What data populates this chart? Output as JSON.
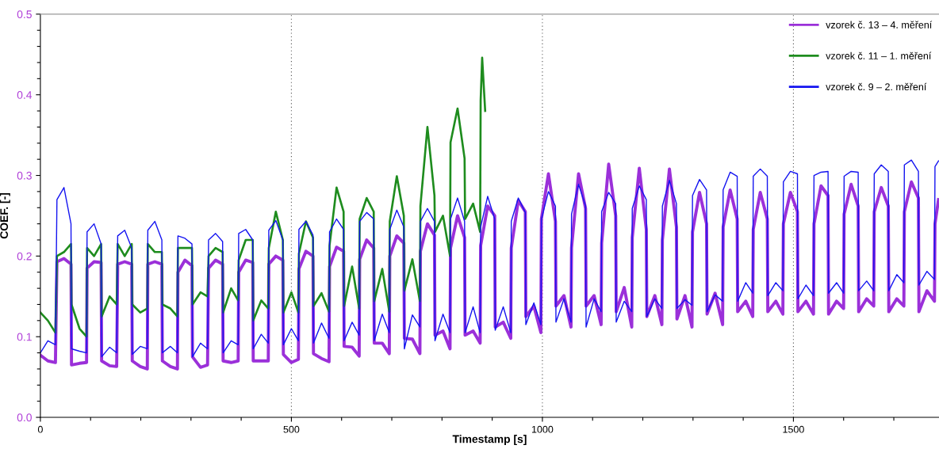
{
  "chart_data": {
    "type": "line",
    "xlabel": "Timestamp [s]",
    "ylabel": "COEF. [-]",
    "xlim": [
      0,
      1790
    ],
    "ylim": [
      0,
      0.5
    ],
    "xticks": [
      0,
      {
        "value": 100,
        "label": null
      },
      {
        "value": 200,
        "label": null
      },
      {
        "value": 300,
        "label": null
      },
      {
        "value": 400,
        "label": null
      },
      500,
      {
        "value": 600,
        "label": null
      },
      {
        "value": 700,
        "label": null
      },
      {
        "value": 800,
        "label": null
      },
      {
        "value": 900,
        "label": null
      },
      1000,
      {
        "value": 1100,
        "label": null
      },
      {
        "value": 1200,
        "label": null
      },
      {
        "value": 1300,
        "label": null
      },
      {
        "value": 1400,
        "label": null
      },
      1500,
      {
        "value": 1600,
        "label": null
      },
      {
        "value": 1700,
        "label": null
      }
    ],
    "yticks": [
      {
        "value": 0,
        "label": "0.0"
      },
      {
        "value": 0.02,
        "label": null
      },
      {
        "value": 0.04,
        "label": null
      },
      {
        "value": 0.06,
        "label": null
      },
      {
        "value": 0.08,
        "label": null
      },
      {
        "value": 0.1,
        "label": "0.1"
      },
      {
        "value": 0.12,
        "label": null
      },
      {
        "value": 0.14,
        "label": null
      },
      {
        "value": 0.16,
        "label": null
      },
      {
        "value": 0.18,
        "label": null
      },
      {
        "value": 0.2,
        "label": "0.2"
      },
      {
        "value": 0.22,
        "label": null
      },
      {
        "value": 0.24,
        "label": null
      },
      {
        "value": 0.26,
        "label": null
      },
      {
        "value": 0.28,
        "label": null
      },
      {
        "value": 0.3,
        "label": "0.3"
      },
      {
        "value": 0.32,
        "label": null
      },
      {
        "value": 0.34,
        "label": null
      },
      {
        "value": 0.36,
        "label": null
      },
      {
        "value": 0.38,
        "label": null
      },
      {
        "value": 0.4,
        "label": "0.4"
      },
      {
        "value": 0.42,
        "label": null
      },
      {
        "value": 0.44,
        "label": null
      },
      {
        "value": 0.46,
        "label": null
      },
      {
        "value": 0.48,
        "label": null
      },
      {
        "value": 0.5,
        "label": "0.5"
      }
    ],
    "grid": "x",
    "legend": "top right",
    "marker": "none",
    "line_style": "solid",
    "series": [
      {
        "name": "vzorek č. 13 – 4. měření",
        "color": "#9b30d9",
        "x": [
          0,
          15,
          30,
          33,
          47,
          61,
          62,
          78,
          92,
          93,
          107,
          121,
          122,
          138,
          152,
          154,
          168,
          182,
          183,
          199,
          213,
          214,
          228,
          242,
          243,
          259,
          273,
          274,
          288,
          302,
          303,
          319,
          333,
          335,
          349,
          363,
          364,
          380,
          394,
          395,
          409,
          423,
          424,
          440,
          454,
          455,
          469,
          483,
          484,
          500,
          514,
          515,
          529,
          543,
          544,
          560,
          575,
          576,
          590,
          604,
          605,
          621,
          635,
          636,
          650,
          664,
          665,
          681,
          695,
          696,
          710,
          724,
          725,
          741,
          756,
          757,
          771,
          785,
          786,
          802,
          816,
          817,
          831,
          845,
          846,
          862,
          876,
          877,
          891,
          905,
          906,
          922,
          937,
          938,
          952,
          966,
          967,
          983,
          997,
          998,
          1012,
          1026,
          1027,
          1043,
          1057,
          1058,
          1072,
          1086,
          1087,
          1103,
          1117,
          1118,
          1132,
          1146,
          1147,
          1163,
          1178,
          1179,
          1193,
          1207,
          1208,
          1224,
          1238,
          1239,
          1253,
          1267,
          1268,
          1284,
          1298,
          1299,
          1313,
          1327,
          1328,
          1344,
          1359,
          1360,
          1374,
          1388,
          1389,
          1405,
          1419,
          1420,
          1434,
          1448,
          1449,
          1465,
          1479,
          1480,
          1494,
          1508,
          1509,
          1525,
          1540,
          1541,
          1555,
          1569,
          1570,
          1586,
          1600,
          1601,
          1615,
          1629,
          1630,
          1646,
          1660,
          1661,
          1675,
          1689,
          1690,
          1706,
          1720,
          1721,
          1735,
          1749,
          1750,
          1766,
          1781,
          1782,
          1789
        ],
        "values": [
          0.077,
          0.07,
          0.068,
          0.193,
          0.197,
          0.19,
          0.065,
          0.067,
          0.068,
          0.185,
          0.193,
          0.192,
          0.07,
          0.064,
          0.063,
          0.19,
          0.193,
          0.19,
          0.07,
          0.063,
          0.06,
          0.19,
          0.193,
          0.19,
          0.07,
          0.063,
          0.06,
          0.18,
          0.195,
          0.188,
          0.075,
          0.062,
          0.065,
          0.185,
          0.195,
          0.19,
          0.07,
          0.068,
          0.07,
          0.18,
          0.195,
          0.192,
          0.07,
          0.07,
          0.07,
          0.19,
          0.2,
          0.195,
          0.078,
          0.068,
          0.072,
          0.184,
          0.206,
          0.2,
          0.079,
          0.073,
          0.069,
          0.187,
          0.211,
          0.206,
          0.088,
          0.087,
          0.076,
          0.196,
          0.22,
          0.21,
          0.092,
          0.092,
          0.079,
          0.2,
          0.225,
          0.216,
          0.098,
          0.097,
          0.079,
          0.206,
          0.24,
          0.226,
          0.102,
          0.107,
          0.085,
          0.21,
          0.25,
          0.223,
          0.102,
          0.107,
          0.092,
          0.213,
          0.262,
          0.25,
          0.112,
          0.118,
          0.098,
          0.21,
          0.269,
          0.255,
          0.125,
          0.138,
          0.105,
          0.246,
          0.302,
          0.243,
          0.138,
          0.151,
          0.112,
          0.21,
          0.302,
          0.259,
          0.138,
          0.151,
          0.115,
          0.216,
          0.314,
          0.25,
          0.131,
          0.161,
          0.112,
          0.223,
          0.309,
          0.233,
          0.125,
          0.151,
          0.115,
          0.22,
          0.308,
          0.236,
          0.122,
          0.151,
          0.112,
          0.23,
          0.279,
          0.24,
          0.128,
          0.154,
          0.115,
          0.236,
          0.282,
          0.246,
          0.131,
          0.144,
          0.125,
          0.233,
          0.279,
          0.246,
          0.131,
          0.144,
          0.128,
          0.24,
          0.279,
          0.255,
          0.131,
          0.144,
          0.128,
          0.24,
          0.287,
          0.275,
          0.128,
          0.144,
          0.135,
          0.252,
          0.289,
          0.262,
          0.131,
          0.147,
          0.138,
          0.255,
          0.285,
          0.262,
          0.131,
          0.147,
          0.138,
          0.255,
          0.292,
          0.272,
          0.131,
          0.157,
          0.144,
          0.24,
          0.27
        ]
      },
      {
        "name": "vzorek č. 11 – 1. měření",
        "color": "#1e8c1e",
        "x": [
          0,
          15,
          30,
          33,
          47,
          61,
          62,
          78,
          92,
          93,
          107,
          121,
          122,
          138,
          152,
          154,
          168,
          182,
          183,
          199,
          213,
          214,
          228,
          242,
          243,
          259,
          273,
          274,
          288,
          302,
          303,
          319,
          333,
          335,
          349,
          363,
          364,
          380,
          394,
          395,
          409,
          423,
          424,
          440,
          454,
          455,
          469,
          483,
          484,
          500,
          514,
          515,
          529,
          543,
          544,
          560,
          575,
          576,
          590,
          604,
          605,
          621,
          635,
          636,
          650,
          664,
          665,
          681,
          695,
          696,
          710,
          724,
          725,
          741,
          756,
          757,
          771,
          785,
          786,
          802,
          816,
          817,
          831,
          845,
          846,
          862,
          876,
          877,
          880,
          886
        ],
        "values": [
          0.13,
          0.12,
          0.105,
          0.2,
          0.205,
          0.215,
          0.14,
          0.11,
          0.1,
          0.21,
          0.2,
          0.215,
          0.125,
          0.15,
          0.14,
          0.215,
          0.2,
          0.215,
          0.14,
          0.13,
          0.135,
          0.215,
          0.205,
          0.205,
          0.14,
          0.135,
          0.125,
          0.21,
          0.21,
          0.21,
          0.14,
          0.155,
          0.15,
          0.2,
          0.21,
          0.205,
          0.13,
          0.16,
          0.145,
          0.195,
          0.22,
          0.22,
          0.12,
          0.145,
          0.135,
          0.21,
          0.255,
          0.22,
          0.13,
          0.155,
          0.13,
          0.203,
          0.243,
          0.223,
          0.138,
          0.154,
          0.131,
          0.213,
          0.285,
          0.255,
          0.138,
          0.187,
          0.135,
          0.246,
          0.272,
          0.255,
          0.144,
          0.184,
          0.131,
          0.243,
          0.299,
          0.25,
          0.157,
          0.196,
          0.144,
          0.262,
          0.36,
          0.275,
          0.23,
          0.25,
          0.2,
          0.341,
          0.383,
          0.321,
          0.246,
          0.265,
          0.23,
          0.393,
          0.446,
          0.38
        ]
      },
      {
        "name": "vzorek č. 9 – 2. měření",
        "color": "#1414f0",
        "x": [
          0,
          15,
          30,
          33,
          47,
          61,
          62,
          78,
          92,
          93,
          107,
          121,
          122,
          138,
          152,
          154,
          168,
          182,
          183,
          199,
          213,
          214,
          228,
          242,
          243,
          259,
          273,
          274,
          288,
          302,
          303,
          319,
          333,
          335,
          349,
          363,
          364,
          380,
          394,
          395,
          409,
          423,
          424,
          440,
          454,
          455,
          469,
          483,
          484,
          500,
          514,
          515,
          529,
          543,
          544,
          560,
          575,
          576,
          590,
          604,
          605,
          621,
          635,
          636,
          650,
          664,
          665,
          681,
          695,
          696,
          710,
          724,
          725,
          741,
          756,
          757,
          771,
          785,
          786,
          802,
          816,
          817,
          831,
          845,
          846,
          862,
          876,
          877,
          891,
          905,
          906,
          922,
          937,
          938,
          952,
          966,
          967,
          983,
          997,
          998,
          1012,
          1026,
          1027,
          1043,
          1057,
          1058,
          1072,
          1086,
          1087,
          1103,
          1117,
          1118,
          1132,
          1146,
          1147,
          1163,
          1178,
          1179,
          1193,
          1207,
          1208,
          1224,
          1238,
          1239,
          1253,
          1267,
          1268,
          1284,
          1298,
          1299,
          1313,
          1327,
          1328,
          1344,
          1359,
          1360,
          1374,
          1388,
          1389,
          1405,
          1419,
          1420,
          1434,
          1448,
          1449,
          1465,
          1479,
          1480,
          1494,
          1508,
          1509,
          1525,
          1540,
          1541,
          1555,
          1569,
          1570,
          1586,
          1600,
          1601,
          1615,
          1629,
          1630,
          1646,
          1660,
          1661,
          1675,
          1689,
          1690,
          1706,
          1720,
          1721,
          1735,
          1749,
          1750,
          1766,
          1781,
          1782,
          1789
        ],
        "values": [
          0.08,
          0.095,
          0.09,
          0.27,
          0.285,
          0.24,
          0.085,
          0.082,
          0.08,
          0.23,
          0.24,
          0.215,
          0.075,
          0.087,
          0.08,
          0.225,
          0.232,
          0.21,
          0.078,
          0.088,
          0.085,
          0.232,
          0.243,
          0.22,
          0.08,
          0.088,
          0.08,
          0.225,
          0.222,
          0.215,
          0.075,
          0.092,
          0.085,
          0.22,
          0.228,
          0.218,
          0.08,
          0.095,
          0.09,
          0.228,
          0.233,
          0.22,
          0.085,
          0.103,
          0.092,
          0.232,
          0.244,
          0.22,
          0.09,
          0.11,
          0.095,
          0.233,
          0.243,
          0.226,
          0.092,
          0.117,
          0.098,
          0.23,
          0.246,
          0.233,
          0.095,
          0.118,
          0.102,
          0.243,
          0.254,
          0.246,
          0.095,
          0.128,
          0.105,
          0.233,
          0.257,
          0.236,
          0.085,
          0.127,
          0.112,
          0.243,
          0.259,
          0.243,
          0.095,
          0.128,
          0.105,
          0.246,
          0.272,
          0.243,
          0.105,
          0.137,
          0.105,
          0.236,
          0.274,
          0.246,
          0.108,
          0.137,
          0.105,
          0.243,
          0.272,
          0.254,
          0.115,
          0.142,
          0.115,
          0.246,
          0.28,
          0.262,
          0.118,
          0.147,
          0.118,
          0.252,
          0.289,
          0.262,
          0.112,
          0.147,
          0.131,
          0.255,
          0.279,
          0.265,
          0.118,
          0.144,
          0.131,
          0.259,
          0.287,
          0.27,
          0.125,
          0.147,
          0.135,
          0.262,
          0.294,
          0.265,
          0.135,
          0.146,
          0.139,
          0.275,
          0.295,
          0.282,
          0.131,
          0.152,
          0.144,
          0.282,
          0.304,
          0.299,
          0.144,
          0.167,
          0.154,
          0.299,
          0.308,
          0.299,
          0.151,
          0.167,
          0.157,
          0.292,
          0.305,
          0.302,
          0.147,
          0.164,
          0.151,
          0.3,
          0.304,
          0.305,
          0.154,
          0.167,
          0.154,
          0.299,
          0.305,
          0.304,
          0.157,
          0.169,
          0.157,
          0.302,
          0.313,
          0.305,
          0.157,
          0.177,
          0.167,
          0.313,
          0.319,
          0.305,
          0.164,
          0.181,
          0.171,
          0.311,
          0.318
        ]
      }
    ]
  }
}
